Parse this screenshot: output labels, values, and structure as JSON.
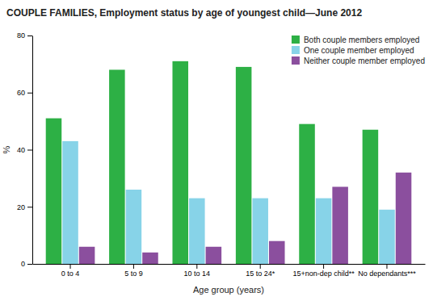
{
  "chart_data": {
    "type": "bar",
    "title": "COUPLE FAMILIES, Employment status by age of youngest child—June 2012",
    "xlabel": "Age group (years)",
    "ylabel": "%",
    "categories": [
      "0 to 4",
      "5 to 9",
      "10 to 14",
      "15 to 24*",
      "15+non-dep child**",
      "No dependants***"
    ],
    "series": [
      {
        "name": "Both couple members employed",
        "color": "#2db045",
        "values": [
          51,
          68,
          71,
          69,
          49,
          47
        ]
      },
      {
        "name": "One couple member employed",
        "color": "#87d3e8",
        "values": [
          43,
          26,
          23,
          23,
          23,
          19
        ]
      },
      {
        "name": "Neither couple member employed",
        "color": "#8b4f9e",
        "values": [
          6,
          4,
          6,
          8,
          27,
          32
        ]
      }
    ],
    "ylim": [
      0,
      80
    ],
    "yticks": [
      0,
      20,
      40,
      60,
      80
    ],
    "grid": false,
    "legend": "upper right"
  }
}
